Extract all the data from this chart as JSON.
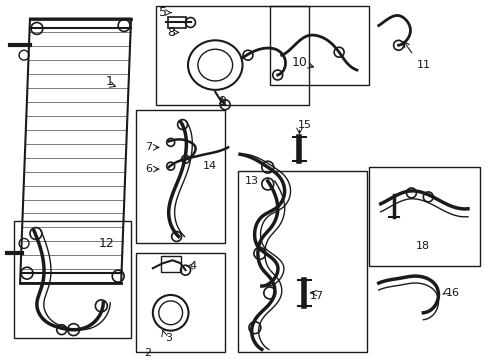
{
  "bg_color": "#ffffff",
  "fig_width": 4.89,
  "fig_height": 3.6,
  "dpi": 100,
  "line_color": "#1a1a1a"
}
